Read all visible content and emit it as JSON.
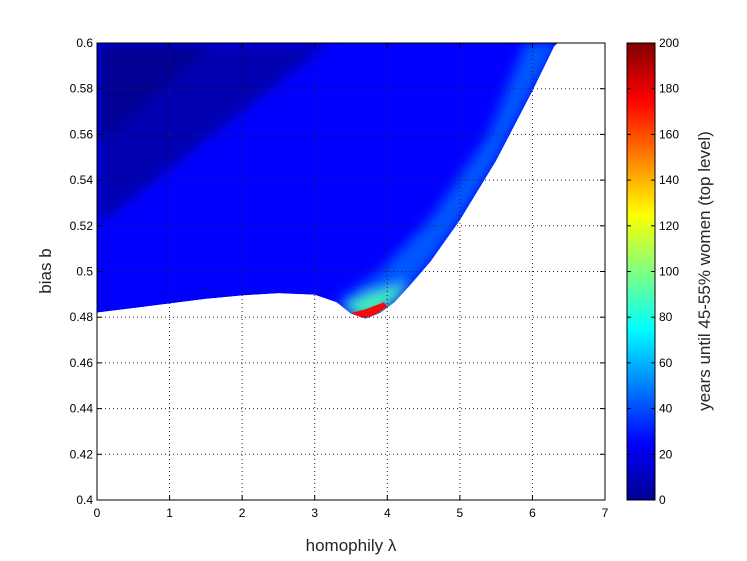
{
  "chart_data": {
    "type": "heatmap",
    "title": "",
    "xlabel": "homophily λ",
    "ylabel": "bias b",
    "xlim": [
      0,
      7
    ],
    "ylim": [
      0.4,
      0.6
    ],
    "x_ticks": [
      0,
      1,
      2,
      3,
      4,
      5,
      6,
      7
    ],
    "y_ticks": [
      0.4,
      0.42,
      0.44,
      0.46,
      0.48,
      0.5,
      0.52,
      0.54,
      0.56,
      0.58,
      0.6
    ],
    "grid": true,
    "colorbar": {
      "label": "years until 45-55% women (top level)",
      "range": [
        0,
        200
      ],
      "ticks": [
        0,
        20,
        40,
        60,
        80,
        100,
        120,
        140,
        160,
        180,
        200
      ],
      "colormap": "jet"
    },
    "boundary": [
      {
        "x": 0.0,
        "y": 0.482
      },
      {
        "x": 0.5,
        "y": 0.484
      },
      {
        "x": 1.0,
        "y": 0.486
      },
      {
        "x": 1.5,
        "y": 0.488
      },
      {
        "x": 2.0,
        "y": 0.4895
      },
      {
        "x": 2.5,
        "y": 0.4905
      },
      {
        "x": 3.0,
        "y": 0.4898
      },
      {
        "x": 3.3,
        "y": 0.4865
      },
      {
        "x": 3.5,
        "y": 0.4815
      },
      {
        "x": 3.7,
        "y": 0.4793
      },
      {
        "x": 3.9,
        "y": 0.4818
      },
      {
        "x": 4.1,
        "y": 0.4865
      },
      {
        "x": 4.3,
        "y": 0.4935
      },
      {
        "x": 4.6,
        "y": 0.5045
      },
      {
        "x": 5.0,
        "y": 0.5225
      },
      {
        "x": 5.5,
        "y": 0.5485
      },
      {
        "x": 6.0,
        "y": 0.579
      },
      {
        "x": 6.3,
        "y": 0.5985
      },
      {
        "x": 6.35,
        "y": 0.6
      }
    ],
    "value_notes": [
      {
        "region": "upper-left",
        "years": 5
      },
      {
        "region": "near dip at λ≈3.7, b≈0.48",
        "years": 200
      }
    ]
  }
}
